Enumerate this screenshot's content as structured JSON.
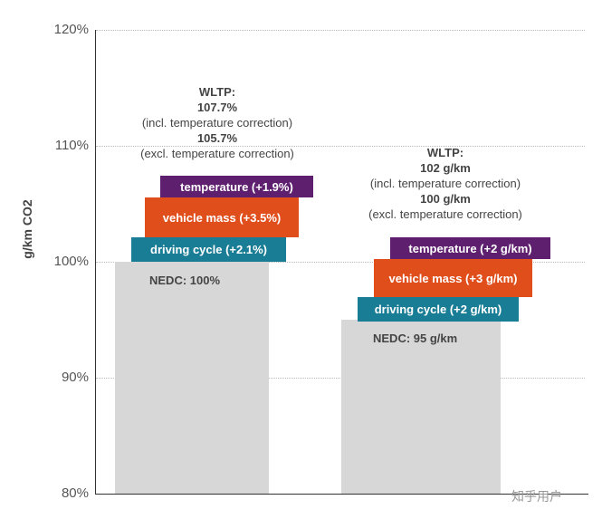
{
  "chart_data": {
    "type": "bar",
    "ylabel": "g/km CO2",
    "ylim": [
      80,
      120
    ],
    "yticks": [
      "80%",
      "90%",
      "100%",
      "110%",
      "120%"
    ],
    "ytick_values": [
      80,
      90,
      100,
      110,
      120
    ],
    "grid": true,
    "categories": [
      "NEDC: 100%",
      "NEDC: 95 g/km"
    ],
    "values": [
      100,
      95
    ],
    "bars": [
      {
        "base_label": "NEDC: 100%",
        "segments": [
          "driving cycle (+2.1%)",
          "vehicle mass (+3.5%)",
          "temperature (+1.9%)"
        ],
        "annotation": {
          "title": "WLTP:",
          "incl": "107.7%",
          "incl_note": "(incl. temperature correction)",
          "excl": "105.7%",
          "excl_note": "(excl. temperature correction)"
        }
      },
      {
        "base_label": "NEDC: 95 g/km",
        "segments": [
          "driving cycle (+2 g/km)",
          "vehicle mass (+3 g/km)",
          "temperature (+2 g/km)"
        ],
        "annotation": {
          "title": "WLTP:",
          "incl": "102 g/km",
          "incl_note": "(incl. temperature correction)",
          "excl": "100 g/km",
          "excl_note": "(excl. temperature correction)"
        }
      }
    ],
    "colors": {
      "bar": "#d7d7d7",
      "driving_cycle": "#1a7d96",
      "vehicle_mass": "#e04e1c",
      "temperature": "#5e1f6e"
    }
  },
  "watermark": "知乎用户"
}
